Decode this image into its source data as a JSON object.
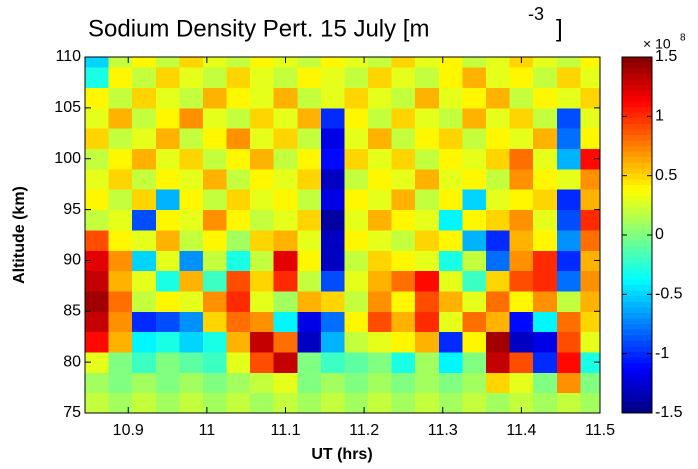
{
  "chart_data": {
    "type": "heatmap",
    "title": "Sodium Density Pert. 15 July [m",
    "title_superscript": "-3",
    "title_end": "]",
    "x_label": "UT (hrs)",
    "y_label": "Altitude (km)",
    "colorbar_multiplier": "× 10",
    "colorbar_exponent": "8",
    "colormap": "jet",
    "clim": [
      -1.5,
      1.5
    ],
    "cticks": [
      -1.5,
      -1,
      -0.5,
      0,
      0.5,
      1,
      1.5
    ],
    "xlim": [
      10.845,
      11.5
    ],
    "xticks": [
      10.9,
      11,
      11.1,
      11.2,
      11.3,
      11.4,
      11.5
    ],
    "ylim": [
      75,
      110
    ],
    "yticks": [
      75,
      80,
      85,
      90,
      95,
      100,
      105,
      110
    ],
    "x": [
      10.86,
      10.89,
      10.92,
      10.95,
      10.98,
      11.01,
      11.04,
      11.07,
      11.1,
      11.13,
      11.16,
      11.19,
      11.22,
      11.25,
      11.28,
      11.31,
      11.34,
      11.37,
      11.4,
      11.43,
      11.46,
      11.49
    ],
    "y": [
      76,
      78,
      80,
      82,
      84,
      86,
      88,
      90,
      92,
      94,
      96,
      98,
      100,
      102,
      104,
      106,
      108,
      110
    ],
    "z": [
      [
        0.2,
        0.1,
        0.2,
        0.1,
        0.2,
        0.1,
        0.2,
        0.1,
        0.2,
        0.1,
        0.2,
        0.1,
        0.2,
        0.1,
        0.2,
        0.1,
        0.2,
        0.1,
        0.2,
        0.1,
        0.2,
        0.1
      ],
      [
        0.1,
        0,
        0.1,
        0,
        0.1,
        0,
        0.1,
        0.2,
        0.3,
        0,
        0.1,
        0,
        0.1,
        0,
        0.1,
        0,
        0.1,
        0.5,
        0.3,
        0,
        0.7,
        0
      ],
      [
        0.3,
        0,
        -0.2,
        0,
        -0.1,
        -0.2,
        0.3,
        0.9,
        1.3,
        0,
        -0.2,
        -0.1,
        0,
        -0.3,
        0.1,
        -0.4,
        0,
        1.3,
        0.9,
        -1.0,
        1.1,
        -0.3
      ],
      [
        1.1,
        0.6,
        -0.4,
        -0.3,
        -0.5,
        -0.3,
        0.6,
        1.3,
        0.8,
        -1.3,
        -0.6,
        0.2,
        0.3,
        0.4,
        0.6,
        -1.0,
        0.4,
        1.4,
        -1.3,
        -1.2,
        0.9,
        0.3
      ],
      [
        1.3,
        0.7,
        -1.0,
        -0.9,
        -0.7,
        0.5,
        0.8,
        0.7,
        -0.4,
        -1.2,
        -0.8,
        0.4,
        0.9,
        0.6,
        1.0,
        0.3,
        0.8,
        0.6,
        -1.1,
        -0.4,
        0.8,
        0.5
      ],
      [
        1.4,
        0.8,
        0.2,
        0.4,
        0.3,
        0.7,
        1.0,
        0.3,
        0.1,
        0.6,
        0.5,
        0.2,
        0.7,
        0.4,
        0.9,
        0.6,
        0.3,
        0.8,
        0.4,
        0.7,
        0.2,
        0.6
      ],
      [
        1.3,
        0.6,
        0.3,
        -0.3,
        0.6,
        -0.2,
        0.9,
        0.5,
        1.0,
        0.2,
        -0.9,
        0.3,
        0.6,
        0.8,
        1.1,
        0.3,
        -0.2,
        0.5,
        0.9,
        1.0,
        -0.8,
        0.7
      ],
      [
        1.2,
        0.7,
        -0.5,
        0.3,
        -0.7,
        0.2,
        -0.3,
        0.2,
        1.2,
        0.4,
        -1.3,
        0.2,
        0.5,
        0.4,
        0.3,
        -0.3,
        0.2,
        -0.8,
        0.7,
        1.0,
        -1.0,
        0.6
      ],
      [
        0.9,
        0.4,
        0.3,
        0.6,
        0.2,
        0.4,
        0.1,
        0.5,
        0.6,
        0.3,
        -1.3,
        0.4,
        0.3,
        0.2,
        0.5,
        0.4,
        -0.6,
        -1.0,
        0.6,
        0.4,
        -0.7,
        0.8
      ],
      [
        0.2,
        0.3,
        -0.9,
        0.4,
        0.3,
        0.7,
        0.4,
        0.2,
        0.3,
        0.5,
        -1.4,
        0.3,
        0.6,
        0.4,
        0.3,
        -0.4,
        0.4,
        0.5,
        0.7,
        0.3,
        -0.9,
        1.0
      ],
      [
        0.4,
        0.2,
        0.5,
        -0.6,
        0.4,
        0.2,
        0.5,
        0.3,
        0.4,
        0.2,
        -1.2,
        0.4,
        0.3,
        0.6,
        0.2,
        0.4,
        -0.5,
        0.3,
        0.4,
        0.5,
        -1.0,
        0.6
      ],
      [
        0.3,
        0.5,
        0.2,
        0.4,
        0.3,
        0.6,
        0.2,
        0.4,
        0.3,
        0.5,
        -1.3,
        0.2,
        0.4,
        0.3,
        0.6,
        0.3,
        0.4,
        0.2,
        0.7,
        0.4,
        0.3,
        0.7
      ],
      [
        0.2,
        0.4,
        0.6,
        0.3,
        0.5,
        0.2,
        0.4,
        0.6,
        0.2,
        0.4,
        -1.1,
        0.5,
        0.3,
        0.5,
        0.2,
        0.4,
        0.3,
        0.5,
        0.8,
        0.3,
        -0.6,
        1.1
      ],
      [
        0.5,
        0.2,
        0.3,
        0.6,
        0.2,
        0.4,
        0.7,
        0.3,
        0.5,
        0.2,
        -1.2,
        0.3,
        0.6,
        0.2,
        0.4,
        0.5,
        0.2,
        0.4,
        0.3,
        0.6,
        -0.8,
        0.4
      ],
      [
        0.3,
        0.6,
        0.2,
        0.4,
        0.7,
        0.3,
        0.2,
        0.5,
        0.3,
        0.6,
        -1.0,
        0.4,
        0.2,
        0.5,
        0.3,
        0.2,
        0.6,
        0.3,
        0.5,
        0.2,
        -0.9,
        0.3
      ],
      [
        0.4,
        0.2,
        0.5,
        0.3,
        0.2,
        0.6,
        0.4,
        0.3,
        0.6,
        0.2,
        0.3,
        0.5,
        0.3,
        0.2,
        0.6,
        0.3,
        0.4,
        0.6,
        0.2,
        0.4,
        0.3,
        0.5
      ],
      [
        -0.3,
        0.4,
        0.2,
        0.5,
        0.3,
        0.2,
        0.5,
        0.3,
        0.2,
        0.4,
        0.3,
        0.2,
        0.5,
        0.3,
        0.2,
        0.4,
        0.6,
        0.3,
        0.4,
        0.2,
        0.5,
        0.3
      ],
      [
        -0.5,
        0.2,
        0.4,
        0.2,
        0.5,
        0.3,
        0.2,
        0.4,
        0.3,
        0.2,
        0.4,
        0.3,
        0.2,
        0.5,
        0.3,
        0.4,
        0.2,
        0.3,
        0.5,
        0.3,
        0.2,
        0.4
      ]
    ]
  }
}
